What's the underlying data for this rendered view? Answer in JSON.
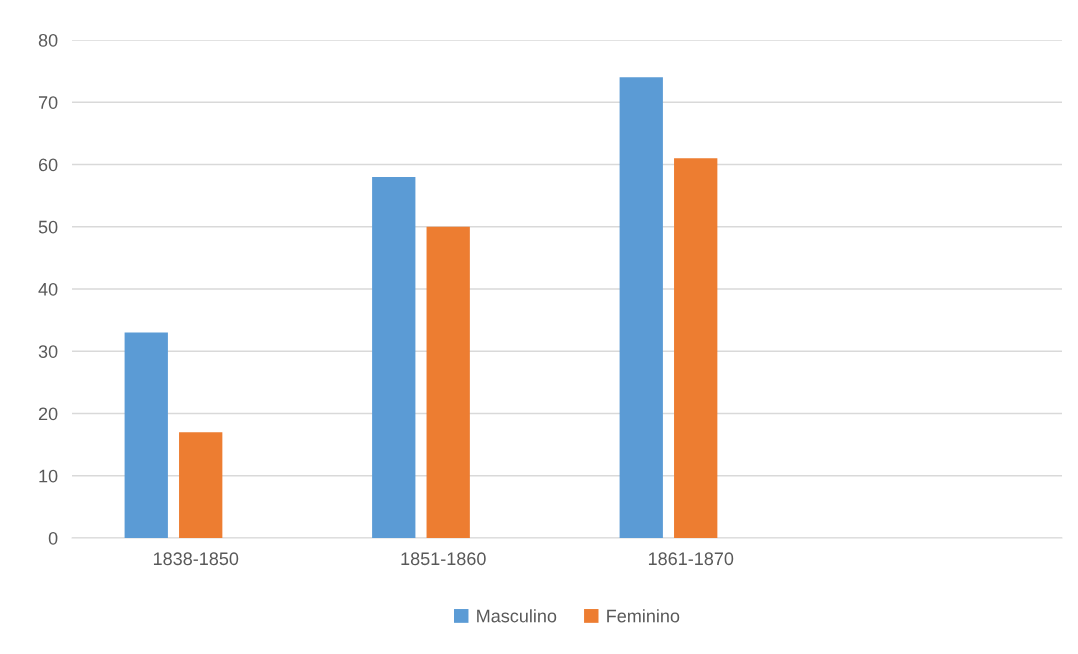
{
  "chart_data": {
    "type": "bar",
    "categories": [
      "1838-1850",
      "1851-1860",
      "1861-1870",
      null
    ],
    "series": [
      {
        "name": "Masculino",
        "color": "#5b9bd5",
        "values": [
          33,
          58,
          74,
          null
        ]
      },
      {
        "name": "Feminino",
        "color": "#ed7d31",
        "values": [
          17,
          50,
          61,
          null
        ]
      }
    ],
    "ylim": [
      0,
      80
    ],
    "yticks": [
      0,
      10,
      20,
      30,
      40,
      50,
      60,
      70,
      80
    ],
    "grid": "y",
    "legend": "bottom"
  }
}
